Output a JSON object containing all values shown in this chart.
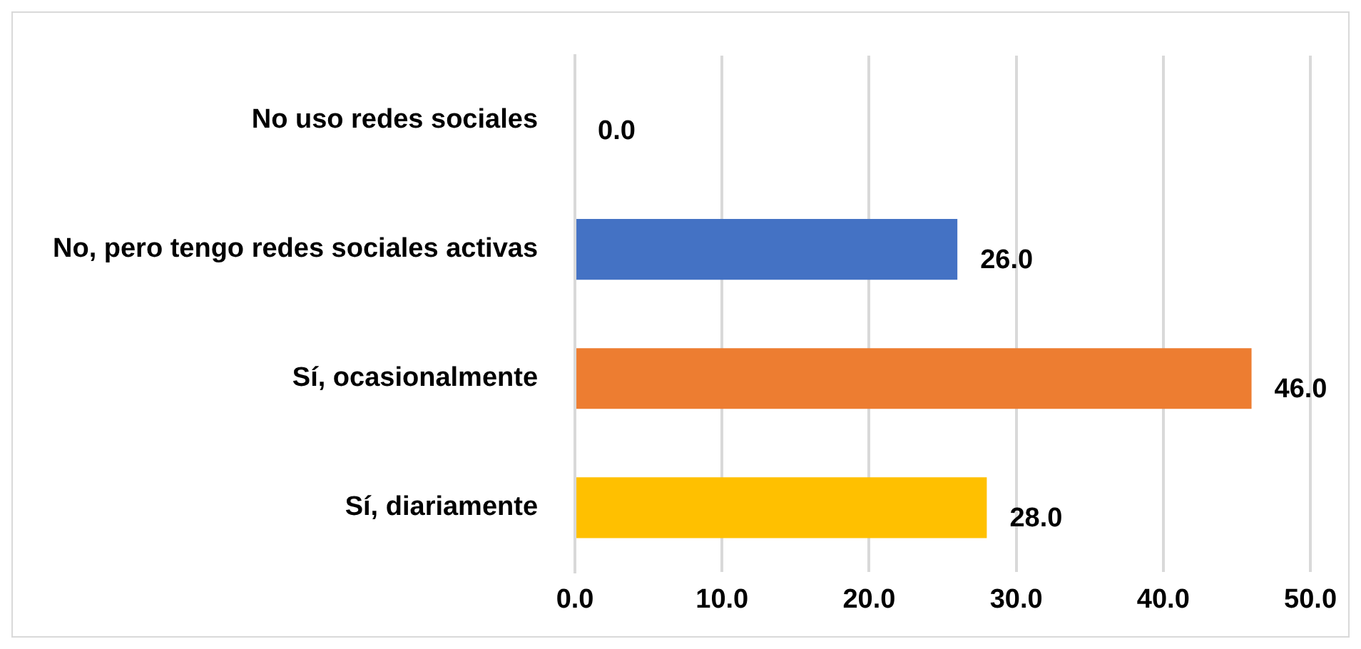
{
  "chart_data": {
    "type": "bar",
    "orientation": "horizontal",
    "categories": [
      "No uso redes sociales",
      "No, pero tengo redes sociales activas",
      "Sí, ocasionalmente",
      "Sí, diariamente"
    ],
    "values": [
      0,
      26,
      46,
      28
    ],
    "colors": [
      "#a5a5a5",
      "#4472c4",
      "#ed7d31",
      "#ffc000"
    ],
    "value_labels": [
      "0.0",
      "26.0",
      "46.0",
      "28.0"
    ],
    "xlim": [
      0,
      50
    ],
    "xticks": [
      {
        "value": 0,
        "label": "0.0"
      },
      {
        "value": 10,
        "label": "10.0"
      },
      {
        "value": 20,
        "label": "20.0"
      },
      {
        "value": 30,
        "label": "30.0"
      },
      {
        "value": 40,
        "label": "40.0"
      },
      {
        "value": 50,
        "label": "50.0"
      }
    ],
    "grid": "x"
  }
}
